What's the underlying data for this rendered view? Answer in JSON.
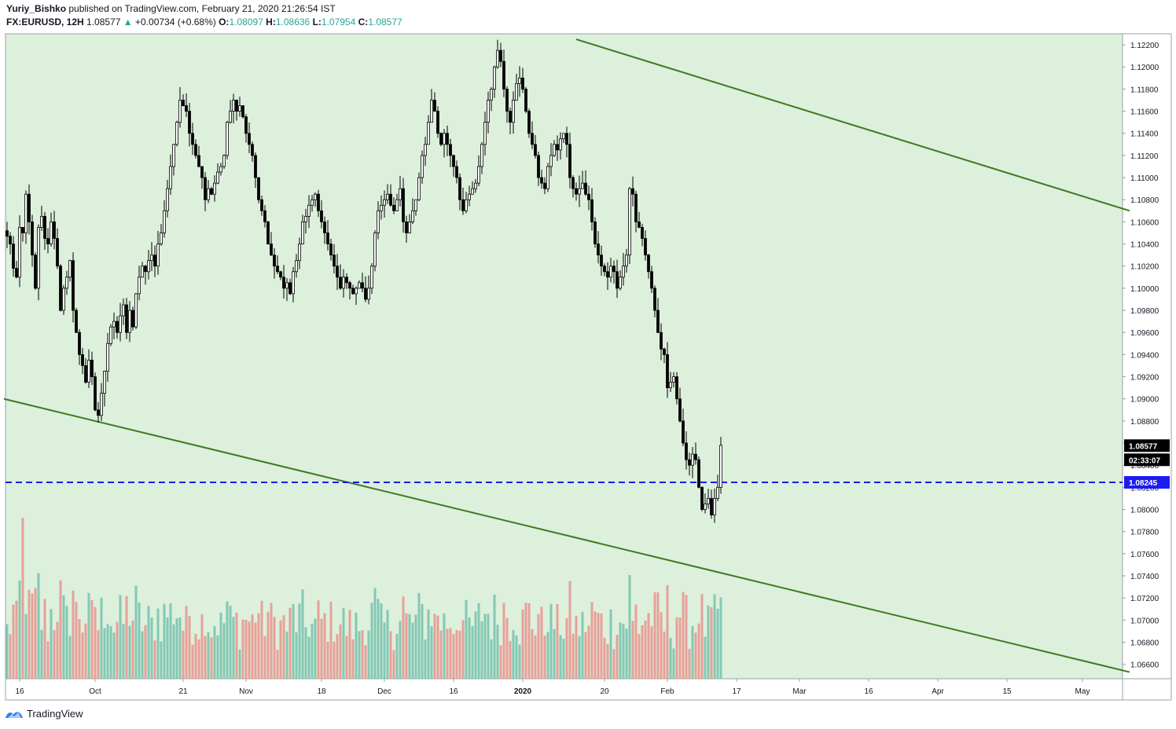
{
  "header": {
    "author": "Yuriy_Bishko",
    "published": "published on TradingView.com, February 21, 2020 21:26:54 IST",
    "symbol": "FX:EURUSD, 12H",
    "last": "1.08577",
    "change_arrow": "▲",
    "change": "+0.00734 (+0.68%)",
    "o_label": "O:",
    "o_value": "1.08097",
    "h_label": "H:",
    "h_value": "1.08636",
    "l_label": "L:",
    "l_value": "1.07954",
    "c_label": "C:",
    "c_value": "1.08577"
  },
  "footer": {
    "brand": "TradingView",
    "logo_icon": "tradingview-logo-icon"
  },
  "colors": {
    "background": "#dcf0dc",
    "candle_body_up": "#ffffff",
    "candle_body_down": "#000000",
    "volume_up": "#84c8b4",
    "volume_down": "#e8a099",
    "trendline": "#3e7a22",
    "hline": "#1c1cf0",
    "axis_text": "#131722"
  },
  "chart_data": {
    "type": "candlestick",
    "title": "FX:EURUSD, 12H",
    "ylim": [
      1.0647,
      1.123
    ],
    "y_ticks": [
      "1.12200",
      "1.12000",
      "1.11800",
      "1.11600",
      "1.11400",
      "1.11200",
      "1.11000",
      "1.10800",
      "1.10600",
      "1.10400",
      "1.10200",
      "1.10000",
      "1.09800",
      "1.09600",
      "1.09400",
      "1.09200",
      "1.09000",
      "1.08800",
      "1.08600",
      "1.08400",
      "1.08200",
      "1.08000",
      "1.07800",
      "1.07600",
      "1.07400",
      "1.07200",
      "1.07000",
      "1.06800",
      "1.06600"
    ],
    "x_ticks": [
      {
        "label": "16",
        "bar": 4,
        "bold": false
      },
      {
        "label": "Oct",
        "bar": 28,
        "bold": false
      },
      {
        "label": "21",
        "bar": 56,
        "bold": false
      },
      {
        "label": "Nov",
        "bar": 76,
        "bold": false
      },
      {
        "label": "18",
        "bar": 100,
        "bold": false
      },
      {
        "label": "Dec",
        "bar": 120,
        "bold": false
      },
      {
        "label": "16",
        "bar": 142,
        "bold": false
      },
      {
        "label": "2020",
        "bar": 164,
        "bold": true
      },
      {
        "label": "20",
        "bar": 190,
        "bold": false
      },
      {
        "label": "Feb",
        "bar": 210,
        "bold": false
      },
      {
        "label": "17",
        "bar": 232,
        "bold": false
      },
      {
        "label": "Mar",
        "bar": 252,
        "bold": false
      },
      {
        "label": "16",
        "bar": 274,
        "bold": false
      },
      {
        "label": "Apr",
        "bar": 296,
        "bold": false
      },
      {
        "label": "15",
        "bar": 318,
        "bold": false
      },
      {
        "label": "May",
        "bar": 342,
        "bold": false
      }
    ],
    "close_series": [
      1.1047,
      1.104,
      1.1018,
      1.101,
      1.1055,
      1.105,
      1.1085,
      1.106,
      1.103,
      1.1,
      1.1055,
      1.1065,
      1.1045,
      1.104,
      1.106,
      1.1045,
      1.102,
      1.098,
      1.1,
      1.101,
      1.1025,
      1.098,
      1.096,
      1.094,
      1.093,
      1.0915,
      1.0935,
      1.092,
      1.089,
      1.0885,
      1.0905,
      1.0925,
      1.095,
      1.0965,
      1.097,
      1.096,
      1.0975,
      1.0985,
      1.096,
      1.098,
      1.0965,
      1.0995,
      1.101,
      1.102,
      1.1015,
      1.1025,
      1.103,
      1.102,
      1.104,
      1.105,
      1.107,
      1.109,
      1.111,
      1.113,
      1.115,
      1.117,
      1.1165,
      1.116,
      1.114,
      1.113,
      1.112,
      1.111,
      1.11,
      1.108,
      1.109,
      1.1085,
      1.1095,
      1.1105,
      1.111,
      1.112,
      1.115,
      1.116,
      1.117,
      1.116,
      1.1165,
      1.1155,
      1.114,
      1.113,
      1.112,
      1.11,
      1.108,
      1.107,
      1.106,
      1.104,
      1.103,
      1.102,
      1.1015,
      1.101,
      1.1,
      1.1005,
      1.0995,
      1.1015,
      1.1025,
      1.104,
      1.106,
      1.1065,
      1.1075,
      1.108,
      1.1085,
      1.107,
      1.106,
      1.105,
      1.104,
      1.103,
      1.102,
      1.101,
      1.1,
      1.101,
      1.1005,
      1.1,
      1.0995,
      1.1,
      1.1005,
      1.1,
      1.099,
      1.1,
      1.102,
      1.105,
      1.107,
      1.1075,
      1.108,
      1.1085,
      1.1075,
      1.107,
      1.108,
      1.109,
      1.106,
      1.105,
      1.106,
      1.107,
      1.108,
      1.11,
      1.112,
      1.113,
      1.115,
      1.117,
      1.116,
      1.114,
      1.113,
      1.114,
      1.113,
      1.112,
      1.111,
      1.11,
      1.108,
      1.107,
      1.108,
      1.1085,
      1.109,
      1.1095,
      1.111,
      1.113,
      1.115,
      1.117,
      1.118,
      1.12,
      1.1215,
      1.1205,
      1.118,
      1.116,
      1.115,
      1.117,
      1.1185,
      1.119,
      1.118,
      1.116,
      1.114,
      1.113,
      1.112,
      1.11,
      1.1095,
      1.109,
      1.111,
      1.112,
      1.113,
      1.1125,
      1.1135,
      1.114,
      1.113,
      1.11,
      1.109,
      1.1085,
      1.109,
      1.1095,
      1.1085,
      1.108,
      1.106,
      1.104,
      1.103,
      1.102,
      1.1015,
      1.101,
      1.102,
      1.1015,
      1.1,
      1.101,
      1.102,
      1.103,
      1.109,
      1.1085,
      1.106,
      1.1055,
      1.1045,
      1.103,
      1.1015,
      1.1,
      1.098,
      1.096,
      1.0945,
      1.094,
      1.091,
      1.0915,
      1.092,
      1.09,
      1.088,
      1.086,
      1.0845,
      1.084,
      1.085,
      1.0845,
      1.082,
      1.08,
      1.0805,
      1.081,
      1.0795,
      1.081,
      1.082,
      1.0858
    ],
    "volume_peak_bar": 5,
    "last_price": "1.08577",
    "countdown": "02:33:07",
    "level_price": "1.08245",
    "hline": {
      "price": 1.08245,
      "style": "dashed"
    },
    "trendlines": [
      {
        "from": {
          "bar": -1,
          "price": 1.09
        },
        "to": {
          "bar": 357,
          "price": 1.0653
        }
      },
      {
        "from": {
          "bar": 181,
          "price": 1.1225
        },
        "to": {
          "bar": 357,
          "price": 1.107
        }
      }
    ],
    "xlabel": "",
    "ylabel": ""
  }
}
